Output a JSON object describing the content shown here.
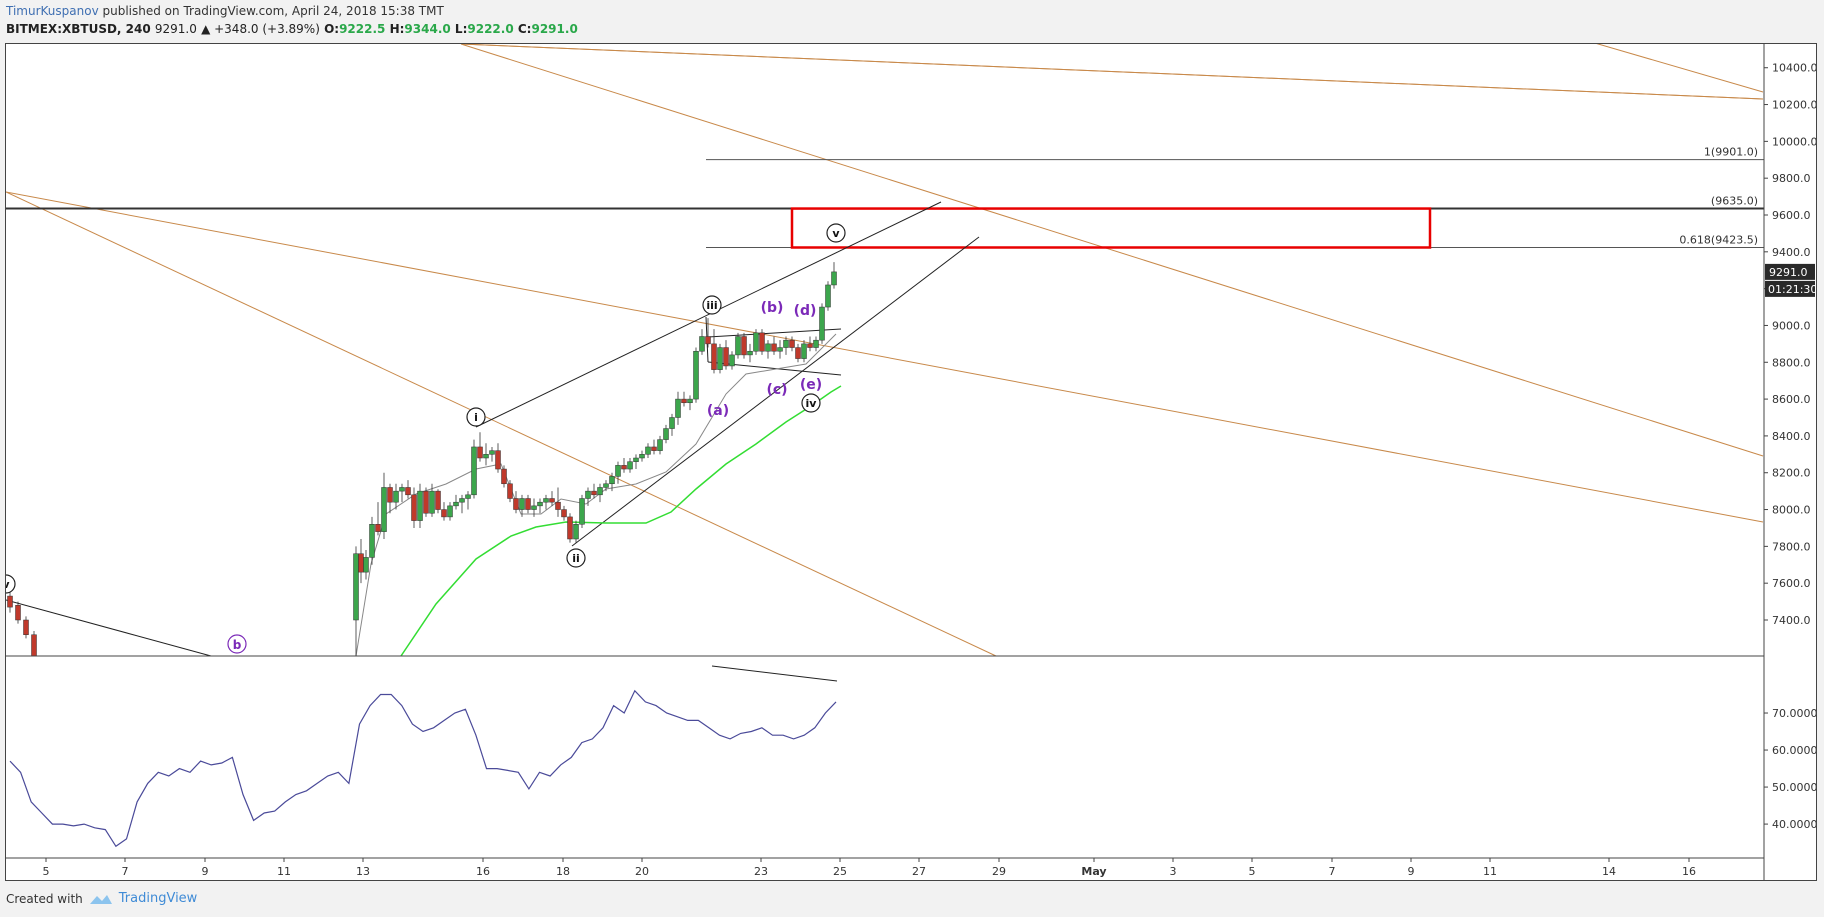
{
  "header": {
    "author": "TimurKuspanov",
    "published": "published on TradingView.com, April 24, 2018 15:38 TMT",
    "symbol": "BITMEX:XBTUSD, 240",
    "last": "9291.0",
    "change": "▲ +348.0 (+3.89%)",
    "o_label": "O:",
    "o": "9222.5",
    "h_label": "H:",
    "h": "9344.0",
    "l_label": "L:",
    "l": "9222.0",
    "c_label": "C:",
    "c": "9291.0"
  },
  "footer": {
    "created": "Created with",
    "brand": "TradingView"
  },
  "colors": {
    "up": "#3ca64c",
    "down": "#c0392b",
    "ma": "#33dd33",
    "rsi": "#4a4a99",
    "trend": "#c8894a",
    "box": "#e80000",
    "wave": "#7b2ab8"
  },
  "chart_data": {
    "type": "candlestick",
    "price_axis": {
      "ylim": [
        7200,
        10500
      ],
      "ticks": [
        "10400.0",
        "10200.0",
        "10000.0",
        "9800.0",
        "9600.0",
        "9400.0",
        "9200.0",
        "9000.0",
        "8800.0",
        "8600.0",
        "8400.0",
        "8200.0",
        "8000.0",
        "7800.0",
        "7600.0",
        "7400.0"
      ]
    },
    "price_tag": "9291.0",
    "timer_tag": "01:21:30",
    "x_axis_ticks": [
      "5",
      "7",
      "9",
      "11",
      "13",
      "16",
      "18",
      "20",
      "23",
      "25",
      "27",
      "29",
      "May",
      "3",
      "5",
      "7",
      "9",
      "11",
      "14",
      "16"
    ],
    "fib_levels": [
      {
        "label": "1(9901.0)",
        "value": 9901.0
      },
      {
        "label": "(9635.0)",
        "value": 9635.0
      },
      {
        "label": "0.618(9423.5)",
        "value": 9423.5
      }
    ],
    "target_zone": {
      "from": 9423.5,
      "to": 9635.0
    },
    "wave_labels_circled": [
      "v",
      "i",
      "ii",
      "iii",
      "iv",
      "v"
    ],
    "wave_labels_sub": [
      "(a)",
      "(b)",
      "(c)",
      "(d)",
      "(e)",
      "b"
    ],
    "rsi_axis": {
      "ylim": [
        33,
        80
      ],
      "ticks": [
        "70.0000",
        "60.0000",
        "50.0000",
        "40.0000"
      ]
    },
    "rsi_values": [
      57,
      54,
      46,
      43,
      40,
      40,
      39.5,
      40,
      39,
      38.5,
      34,
      36,
      46,
      51,
      54,
      53,
      55,
      54,
      57,
      56,
      56.5,
      58,
      48,
      41,
      43,
      43.5,
      46,
      48,
      49,
      51,
      53,
      54,
      51,
      67,
      72,
      75,
      75,
      72,
      67,
      65,
      66,
      68,
      70,
      71,
      64,
      55,
      55,
      54.5,
      54,
      49.5,
      54,
      53,
      56,
      58,
      62,
      63,
      66,
      72,
      70,
      76,
      73,
      72,
      70,
      69,
      68,
      68,
      66,
      64,
      63,
      64.5,
      65,
      66,
      64,
      64,
      63,
      64,
      66,
      70,
      73
    ]
  }
}
